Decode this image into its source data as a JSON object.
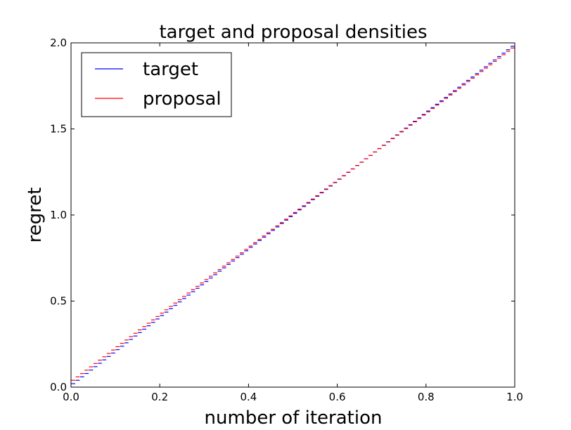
{
  "chart_data": {
    "type": "line",
    "title": "target and proposal densities",
    "xlabel": "number of iteration",
    "ylabel": "regret",
    "xlim": [
      0.0,
      1.0
    ],
    "ylim": [
      0.0,
      2.0
    ],
    "xticks": [
      "0.0",
      "0.2",
      "0.4",
      "0.6",
      "0.8",
      "1.0"
    ],
    "yticks": [
      "0.0",
      "0.5",
      "1.0",
      "1.5",
      "2.0"
    ],
    "grid": false,
    "legend_position": "upper-left",
    "series": [
      {
        "name": "target",
        "color": "#0000ff",
        "style": "horizontal step segments",
        "x_start": 0.0,
        "x_end": 1.0,
        "y_start": 0.02,
        "y_end": 1.98,
        "segments": 100
      },
      {
        "name": "proposal",
        "color": "#ff0000",
        "style": "horizontal step segments",
        "x_start": 0.0,
        "x_end": 1.0,
        "y_start": 0.04,
        "y_end": 1.97,
        "segments": 100
      }
    ]
  }
}
